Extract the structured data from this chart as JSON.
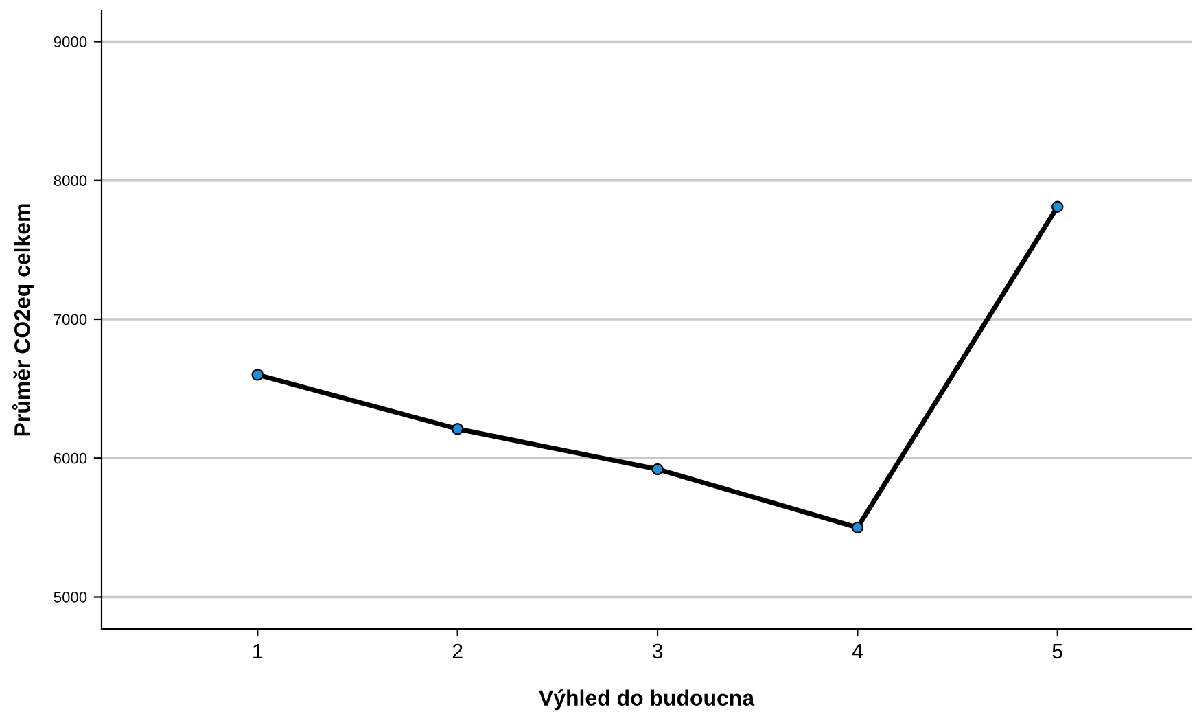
{
  "chart_data": {
    "type": "line",
    "xlabel": "Výhled do budoucna",
    "ylabel": "Průměr CO2eq celkem",
    "categories": [
      "1",
      "2",
      "3",
      "4",
      "5"
    ],
    "series": [
      {
        "color": "#000000",
        "colors": [
          "#1f8fdc",
          "#1f8fdc",
          "#1f8fdc",
          "#1f8fdc",
          "#1f8fdc"
        ],
        "values": [
          6600,
          6210,
          5920,
          5500,
          7810
        ]
      }
    ],
    "ylim": [
      4770,
      9220
    ],
    "yticks": [
      5000,
      6000,
      7000,
      8000,
      9000
    ],
    "grid": "y",
    "marker": "circle",
    "line_style": "solid"
  }
}
